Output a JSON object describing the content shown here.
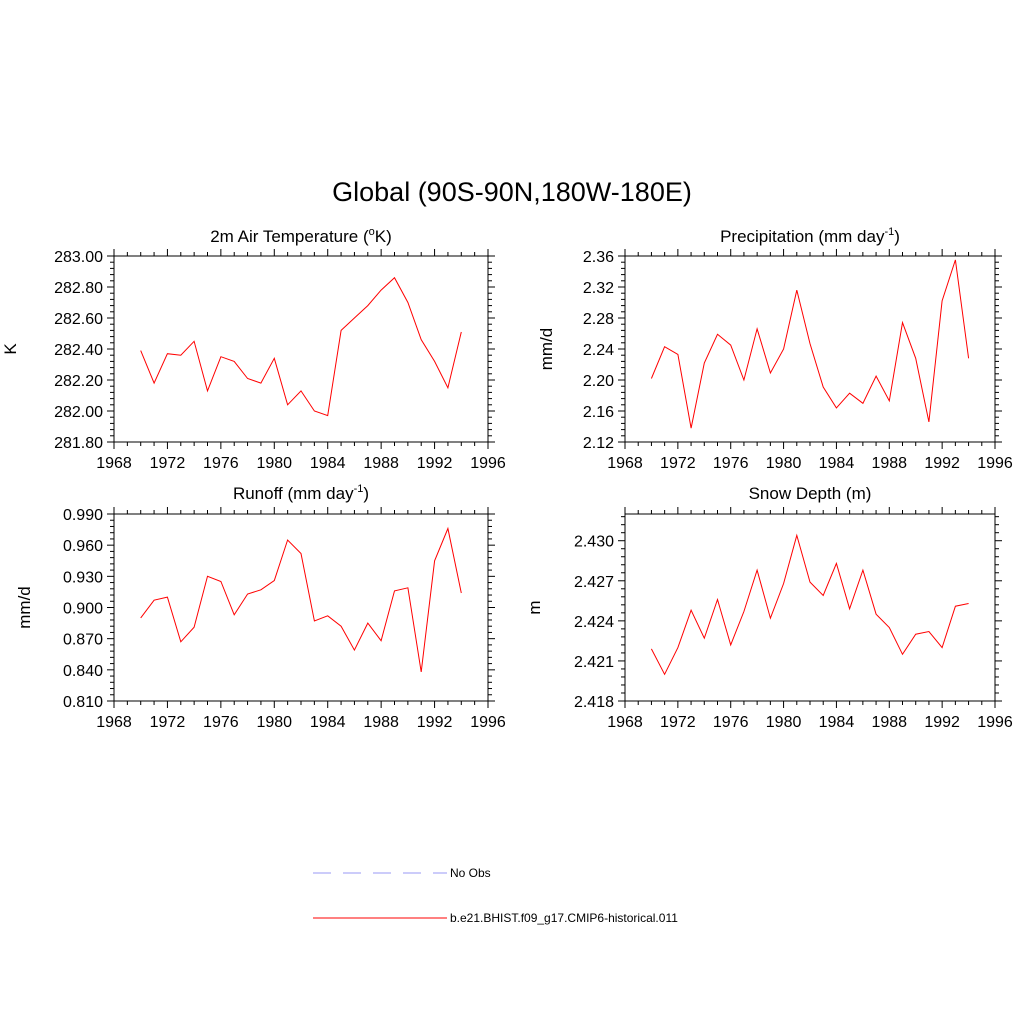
{
  "figure": {
    "title": "Global (90S-90N,180W-180E)"
  },
  "chart_data": [
    {
      "type": "line",
      "title": "2m Air Temperature (oK)",
      "title_parts": [
        "2m Air Temperature (",
        "o",
        "K)"
      ],
      "ylabel": "K",
      "xlim": [
        1968,
        1996
      ],
      "ylim": [
        281.8,
        283.0
      ],
      "x_ticks": [
        1968,
        1972,
        1976,
        1980,
        1984,
        1988,
        1992,
        1996
      ],
      "y_ticks": [
        "281.80",
        "282.00",
        "282.20",
        "282.40",
        "282.60",
        "282.80",
        "283.00"
      ],
      "x": [
        1970,
        1971,
        1972,
        1973,
        1974,
        1975,
        1976,
        1977,
        1978,
        1979,
        1980,
        1981,
        1982,
        1983,
        1984,
        1985,
        1986,
        1987,
        1988,
        1989,
        1990,
        1991,
        1992,
        1993,
        1994
      ],
      "series": [
        {
          "values": [
            282.39,
            282.18,
            282.37,
            282.36,
            282.45,
            282.13,
            282.35,
            282.32,
            282.21,
            282.18,
            282.34,
            282.04,
            282.13,
            282.0,
            281.97,
            282.52,
            282.6,
            282.68,
            282.78,
            282.86,
            282.7,
            282.46,
            282.32,
            282.15,
            282.51
          ],
          "color": "#ff0000"
        }
      ]
    },
    {
      "type": "line",
      "title": "Precipitation (mm day-1)",
      "title_parts": [
        "Precipitation (mm day",
        "-1",
        ")"
      ],
      "ylabel": "mm/d",
      "xlim": [
        1968,
        1996
      ],
      "ylim": [
        2.12,
        2.36
      ],
      "x_ticks": [
        1968,
        1972,
        1976,
        1980,
        1984,
        1988,
        1992,
        1996
      ],
      "y_ticks": [
        "2.12",
        "2.16",
        "2.20",
        "2.24",
        "2.28",
        "2.32",
        "2.36"
      ],
      "x": [
        1970,
        1971,
        1972,
        1973,
        1974,
        1975,
        1976,
        1977,
        1978,
        1979,
        1980,
        1981,
        1982,
        1983,
        1984,
        1985,
        1986,
        1987,
        1988,
        1989,
        1990,
        1991,
        1992,
        1993,
        1994
      ],
      "series": [
        {
          "values": [
            2.202,
            2.243,
            2.233,
            2.138,
            2.222,
            2.259,
            2.245,
            2.2,
            2.266,
            2.209,
            2.24,
            2.316,
            2.247,
            2.191,
            2.164,
            2.183,
            2.17,
            2.205,
            2.173,
            2.274,
            2.228,
            2.146,
            2.302,
            2.355,
            2.228
          ],
          "color": "#ff0000"
        }
      ]
    },
    {
      "type": "line",
      "title": "Runoff (mm day-1)",
      "title_parts": [
        "Runoff (mm day",
        "-1",
        ")"
      ],
      "ylabel": "mm/d",
      "xlim": [
        1968,
        1996
      ],
      "ylim": [
        0.81,
        0.99
      ],
      "x_ticks": [
        1968,
        1972,
        1976,
        1980,
        1984,
        1988,
        1992,
        1996
      ],
      "y_ticks": [
        "0.810",
        "0.840",
        "0.870",
        "0.900",
        "0.930",
        "0.960",
        "0.990"
      ],
      "x": [
        1970,
        1971,
        1972,
        1973,
        1974,
        1975,
        1976,
        1977,
        1978,
        1979,
        1980,
        1981,
        1982,
        1983,
        1984,
        1985,
        1986,
        1987,
        1988,
        1989,
        1990,
        1991,
        1992,
        1993,
        1994
      ],
      "series": [
        {
          "values": [
            0.89,
            0.907,
            0.91,
            0.867,
            0.881,
            0.93,
            0.925,
            0.893,
            0.913,
            0.917,
            0.926,
            0.965,
            0.952,
            0.887,
            0.892,
            0.882,
            0.859,
            0.885,
            0.868,
            0.916,
            0.919,
            0.838,
            0.945,
            0.976,
            0.914
          ],
          "color": "#ff0000"
        }
      ]
    },
    {
      "type": "line",
      "title": "Snow Depth (m)",
      "title_parts": [
        "Snow Depth (m)",
        "",
        ""
      ],
      "ylabel": "m",
      "xlim": [
        1968,
        1996
      ],
      "ylim": [
        2.418,
        2.432
      ],
      "x_ticks": [
        1968,
        1972,
        1976,
        1980,
        1984,
        1988,
        1992,
        1996
      ],
      "y_ticks": [
        "2.418",
        "2.421",
        "2.424",
        "2.427",
        "2.430"
      ],
      "y_tick_values": [
        2.418,
        2.421,
        2.424,
        2.427,
        2.43
      ],
      "x": [
        1970,
        1971,
        1972,
        1973,
        1974,
        1975,
        1976,
        1977,
        1978,
        1979,
        1980,
        1981,
        1982,
        1983,
        1984,
        1985,
        1986,
        1987,
        1988,
        1989,
        1990,
        1991,
        1992,
        1993,
        1994
      ],
      "series": [
        {
          "values": [
            2.4219,
            2.42,
            2.422,
            2.4248,
            2.4227,
            2.4256,
            2.4222,
            2.4247,
            2.4278,
            2.4242,
            2.4268,
            2.4304,
            2.4269,
            2.4259,
            2.4283,
            2.4249,
            2.4278,
            2.4245,
            2.4235,
            2.4215,
            2.423,
            2.4232,
            2.422,
            2.4251,
            2.4253
          ],
          "color": "#ff0000"
        }
      ]
    }
  ],
  "legend": [
    {
      "label": "No Obs",
      "color": "#9a9af5",
      "dash": true
    },
    {
      "label": "b.e21.BHIST.f09_g17.CMIP6-historical.011",
      "color": "#ff0000",
      "dash": false
    }
  ]
}
